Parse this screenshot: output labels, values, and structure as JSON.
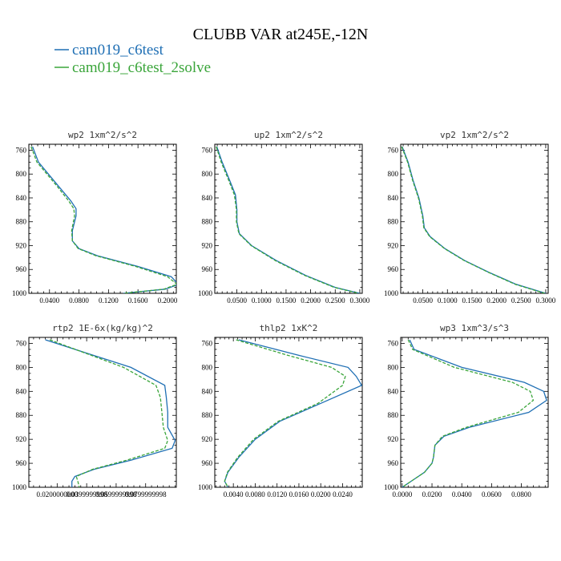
{
  "title": "CLUBB VAR at245E,-12N",
  "legend": [
    {
      "label": "cam019_c6test",
      "color": "#1f6fb4",
      "dashed": false
    },
    {
      "label": "cam019_c6test_2solve",
      "color": "#3aa53a",
      "dashed": true
    }
  ],
  "chart_data": [
    {
      "type": "line",
      "title": "wp2  1xm^2/s^2",
      "ylim": [
        1000,
        750
      ],
      "yticks": [
        760,
        800,
        840,
        880,
        920,
        960,
        1000
      ],
      "xlim": [
        0.012,
        0.212
      ],
      "xticks": [
        0.04,
        0.08,
        0.12,
        0.16,
        0.2
      ],
      "xticklabels": [
        "0.0400",
        "0.0800",
        "0.1200",
        "0.1600",
        "0.2000"
      ],
      "series": [
        {
          "name": "cam019_c6test",
          "p": [
            754,
            780,
            820,
            845,
            858,
            870,
            895,
            912,
            925,
            937,
            955,
            972,
            985,
            993,
            1000
          ],
          "x": [
            0.017,
            0.025,
            0.052,
            0.069,
            0.076,
            0.076,
            0.071,
            0.071,
            0.08,
            0.105,
            0.16,
            0.205,
            0.215,
            0.197,
            0.14
          ]
        },
        {
          "name": "cam019_c6test_2solve",
          "p": [
            754,
            780,
            820,
            845,
            858,
            870,
            895,
            912,
            925,
            937,
            955,
            972,
            985,
            993,
            1000
          ],
          "x": [
            0.015,
            0.023,
            0.05,
            0.066,
            0.073,
            0.074,
            0.07,
            0.071,
            0.079,
            0.103,
            0.157,
            0.2,
            0.213,
            0.195,
            0.14
          ]
        }
      ]
    },
    {
      "type": "line",
      "title": "up2  1xm^2/s^2",
      "ylim": [
        1000,
        750
      ],
      "yticks": [
        760,
        800,
        840,
        880,
        920,
        960,
        1000
      ],
      "xlim": [
        0.005,
        0.305
      ],
      "xticks": [
        0.05,
        0.1,
        0.15,
        0.2,
        0.25,
        0.3
      ],
      "xticklabels": [
        "0.0500",
        "0.1000",
        "0.1500",
        "0.2000",
        "0.2500",
        "0.3000"
      ],
      "series": [
        {
          "name": "cam019_c6test",
          "p": [
            754,
            780,
            810,
            835,
            860,
            880,
            900,
            920,
            945,
            970,
            990,
            1000
          ],
          "x": [
            0.009,
            0.02,
            0.035,
            0.047,
            0.05,
            0.05,
            0.055,
            0.08,
            0.13,
            0.19,
            0.25,
            0.3
          ]
        },
        {
          "name": "cam019_c6test_2solve",
          "p": [
            754,
            780,
            810,
            835,
            860,
            880,
            900,
            920,
            945,
            970,
            990,
            1000
          ],
          "x": [
            0.008,
            0.018,
            0.033,
            0.045,
            0.049,
            0.049,
            0.054,
            0.079,
            0.128,
            0.188,
            0.248,
            0.298
          ]
        }
      ]
    },
    {
      "type": "line",
      "title": "vp2  1xm^2/s^2",
      "ylim": [
        1000,
        750
      ],
      "yticks": [
        760,
        800,
        840,
        880,
        920,
        960,
        1000
      ],
      "xlim": [
        0.005,
        0.305
      ],
      "xticks": [
        0.05,
        0.1,
        0.15,
        0.2,
        0.25,
        0.3
      ],
      "xticklabels": [
        "0.0500",
        "0.1000",
        "0.1500",
        "0.2000",
        "0.2500",
        "0.3000"
      ],
      "series": [
        {
          "name": "cam019_c6test",
          "p": [
            754,
            780,
            810,
            840,
            870,
            890,
            905,
            925,
            945,
            965,
            985,
            1000
          ],
          "x": [
            0.008,
            0.02,
            0.03,
            0.042,
            0.05,
            0.053,
            0.065,
            0.095,
            0.135,
            0.185,
            0.24,
            0.3
          ]
        },
        {
          "name": "cam019_c6test_2solve",
          "p": [
            754,
            780,
            810,
            840,
            870,
            890,
            905,
            925,
            945,
            965,
            985,
            1000
          ],
          "x": [
            0.007,
            0.019,
            0.029,
            0.041,
            0.049,
            0.052,
            0.064,
            0.094,
            0.134,
            0.184,
            0.238,
            0.298
          ]
        }
      ]
    },
    {
      "type": "line",
      "title": "rtp2  1E-6x(kg/kg)^2",
      "ylim": [
        1000,
        750
      ],
      "yticks": [
        760,
        800,
        840,
        880,
        920,
        960,
        1000
      ],
      "xlim": [
        0.0008,
        0.1008
      ],
      "xticks": [
        0.02,
        0.04,
        0.06,
        0.08
      ],
      "xticklabels": [
        "0.0200000000",
        "0.0399999998",
        "0.0599999998",
        "0.0799999998"
      ],
      "series": [
        {
          "name": "cam019_c6test",
          "p": [
            754,
            800,
            830,
            850,
            875,
            900,
            922,
            935,
            955,
            970,
            982,
            990,
            1000
          ],
          "x": [
            0.012,
            0.07,
            0.093,
            0.094,
            0.095,
            0.095,
            0.1,
            0.098,
            0.07,
            0.045,
            0.032,
            0.03,
            0.03
          ]
        },
        {
          "name": "cam019_c6test_2solve",
          "p": [
            754,
            800,
            830,
            850,
            875,
            900,
            922,
            935,
            955,
            970,
            982,
            990,
            1000
          ],
          "x": [
            0.015,
            0.065,
            0.087,
            0.09,
            0.091,
            0.092,
            0.095,
            0.093,
            0.067,
            0.044,
            0.033,
            0.034,
            0.035
          ]
        }
      ]
    },
    {
      "type": "line",
      "title": "thlp2  1xK^2",
      "ylim": [
        1000,
        750
      ],
      "yticks": [
        760,
        800,
        840,
        880,
        920,
        960,
        1000
      ],
      "xlim": [
        0.0006,
        0.0276
      ],
      "xticks": [
        0.004,
        0.008,
        0.012,
        0.016,
        0.02,
        0.024
      ],
      "xticklabels": [
        "0.0040",
        "0.0080",
        "0.0120",
        "0.0160",
        "0.0200",
        "0.0240"
      ],
      "series": [
        {
          "name": "cam019_c6test",
          "p": [
            754,
            780,
            800,
            815,
            830,
            860,
            890,
            920,
            950,
            975,
            990,
            1000
          ],
          "x": [
            0.005,
            0.016,
            0.025,
            0.0265,
            0.0275,
            0.02,
            0.0125,
            0.008,
            0.005,
            0.003,
            0.0024,
            0.003
          ]
        },
        {
          "name": "cam019_c6test_2solve",
          "p": [
            754,
            780,
            800,
            815,
            830,
            860,
            890,
            920,
            950,
            975,
            990,
            1000
          ],
          "x": [
            0.0045,
            0.014,
            0.022,
            0.0245,
            0.024,
            0.0195,
            0.0122,
            0.0077,
            0.0048,
            0.0029,
            0.0024,
            0.003
          ]
        }
      ]
    },
    {
      "type": "line",
      "title": "wp3  1xm^3/s^3",
      "ylim": [
        1000,
        750
      ],
      "yticks": [
        760,
        800,
        840,
        880,
        920,
        960,
        1000
      ],
      "xlim": [
        -0.001,
        0.098
      ],
      "xticks": [
        0,
        0.02,
        0.04,
        0.06,
        0.08
      ],
      "xticklabels": [
        "0.0000",
        "0.0200",
        "0.0400",
        "0.0600",
        "0.0800"
      ],
      "series": [
        {
          "name": "cam019_c6test",
          "p": [
            754,
            770,
            800,
            825,
            840,
            855,
            875,
            900,
            915,
            930,
            950,
            960,
            975,
            990,
            1000
          ],
          "x": [
            0.005,
            0.008,
            0.04,
            0.082,
            0.095,
            0.097,
            0.085,
            0.045,
            0.028,
            0.022,
            0.021,
            0.02,
            0.015,
            0.006,
            0.0
          ]
        },
        {
          "name": "cam019_c6test_2solve",
          "p": [
            754,
            770,
            800,
            825,
            840,
            855,
            875,
            900,
            915,
            930,
            950,
            960,
            975,
            990,
            1000
          ],
          "x": [
            0.004,
            0.007,
            0.035,
            0.074,
            0.086,
            0.088,
            0.078,
            0.043,
            0.027,
            0.022,
            0.021,
            0.02,
            0.015,
            0.006,
            0.0
          ]
        }
      ]
    }
  ]
}
